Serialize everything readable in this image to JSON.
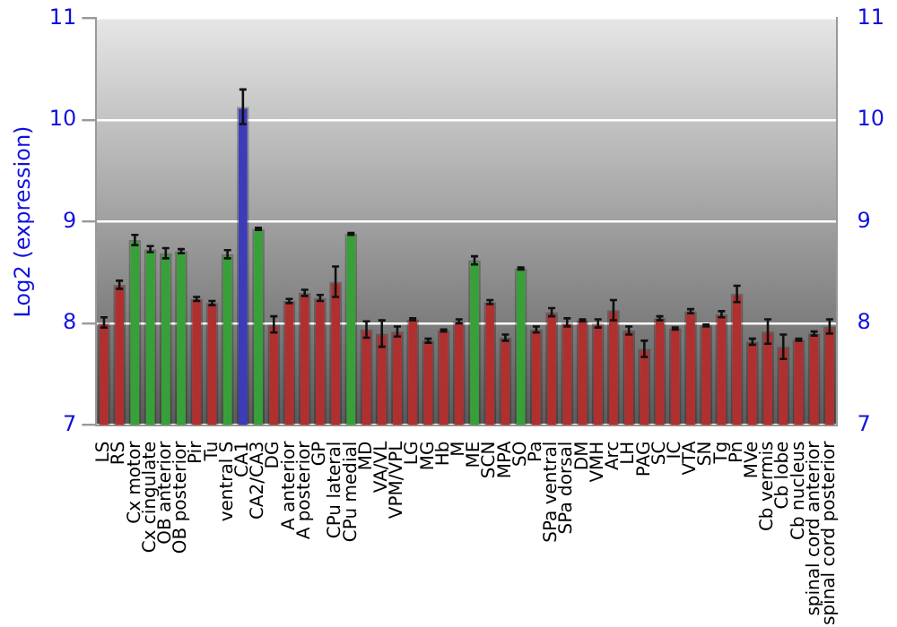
{
  "chart_data": {
    "type": "bar",
    "ylabel": "Log2 (expression)",
    "categories": [
      "LS",
      "RS",
      "Cx motor",
      "Cx cingulate",
      "OB anterior",
      "OB posterior",
      "Pir",
      "Tu",
      "ventral S",
      "CA1",
      "CA2/CA3",
      "DG",
      "A anterior",
      "A posterior",
      "GP",
      "CPu lateral",
      "CPu medial",
      "MD",
      "VA/VL",
      "VPM/VPL",
      "LG",
      "MG",
      "Hb",
      "M",
      "ME",
      "SCN",
      "MPA",
      "SO",
      "Pa",
      "SPa ventral",
      "SPa dorsal",
      "DM",
      "VMH",
      "Arc",
      "LH",
      "PAG",
      "SC",
      "IC",
      "VTA",
      "SN",
      "Tg",
      "Pn",
      "MVe",
      "Cb vermis",
      "Cb lobe",
      "Cb nucleus",
      "spinal cord anterior",
      "spinal cord posterior"
    ],
    "values": [
      8.01,
      8.38,
      8.82,
      8.73,
      8.69,
      8.71,
      8.24,
      8.2,
      8.68,
      10.13,
      8.93,
      7.99,
      8.22,
      8.3,
      8.25,
      8.41,
      8.88,
      7.94,
      7.9,
      7.92,
      8.04,
      7.83,
      7.93,
      8.02,
      8.62,
      8.21,
      7.86,
      8.54,
      7.94,
      8.11,
      8.01,
      8.03,
      8.0,
      8.13,
      7.93,
      7.75,
      8.05,
      7.95,
      8.12,
      7.98,
      8.09,
      8.29,
      7.82,
      7.92,
      7.77,
      7.84,
      7.9,
      7.97
    ],
    "errors": [
      0.05,
      0.04,
      0.05,
      0.03,
      0.05,
      0.02,
      0.02,
      0.02,
      0.04,
      0.17,
      0.01,
      0.08,
      0.02,
      0.03,
      0.03,
      0.15,
      0.01,
      0.08,
      0.13,
      0.05,
      0.01,
      0.02,
      0.01,
      0.02,
      0.04,
      0.02,
      0.03,
      0.01,
      0.03,
      0.04,
      0.04,
      0.01,
      0.04,
      0.1,
      0.04,
      0.08,
      0.02,
      0.01,
      0.02,
      0.01,
      0.03,
      0.08,
      0.03,
      0.12,
      0.12,
      0.01,
      0.02,
      0.07
    ],
    "colors": [
      "#b03030",
      "#b03030",
      "#38a038",
      "#38a038",
      "#38a038",
      "#38a038",
      "#b03030",
      "#b03030",
      "#38a038",
      "#3c3cb8",
      "#38a038",
      "#b03030",
      "#b03030",
      "#b03030",
      "#b03030",
      "#b03030",
      "#38a038",
      "#b03030",
      "#b03030",
      "#b03030",
      "#b03030",
      "#b03030",
      "#b03030",
      "#b03030",
      "#38a038",
      "#b03030",
      "#b03030",
      "#38a038",
      "#b03030",
      "#b03030",
      "#b03030",
      "#b03030",
      "#b03030",
      "#b03030",
      "#b03030",
      "#b03030",
      "#b03030",
      "#b03030",
      "#b03030",
      "#b03030",
      "#b03030",
      "#b03030",
      "#b03030",
      "#b03030",
      "#b03030",
      "#b03030",
      "#b03030",
      "#b03030"
    ],
    "ylim": [
      7,
      11
    ],
    "yticks": [
      7,
      8,
      9,
      10,
      11
    ],
    "y2lim": [
      7,
      11
    ],
    "y2ticks": [
      7,
      8,
      9,
      10,
      11
    ],
    "grid": "y",
    "legend": false
  }
}
